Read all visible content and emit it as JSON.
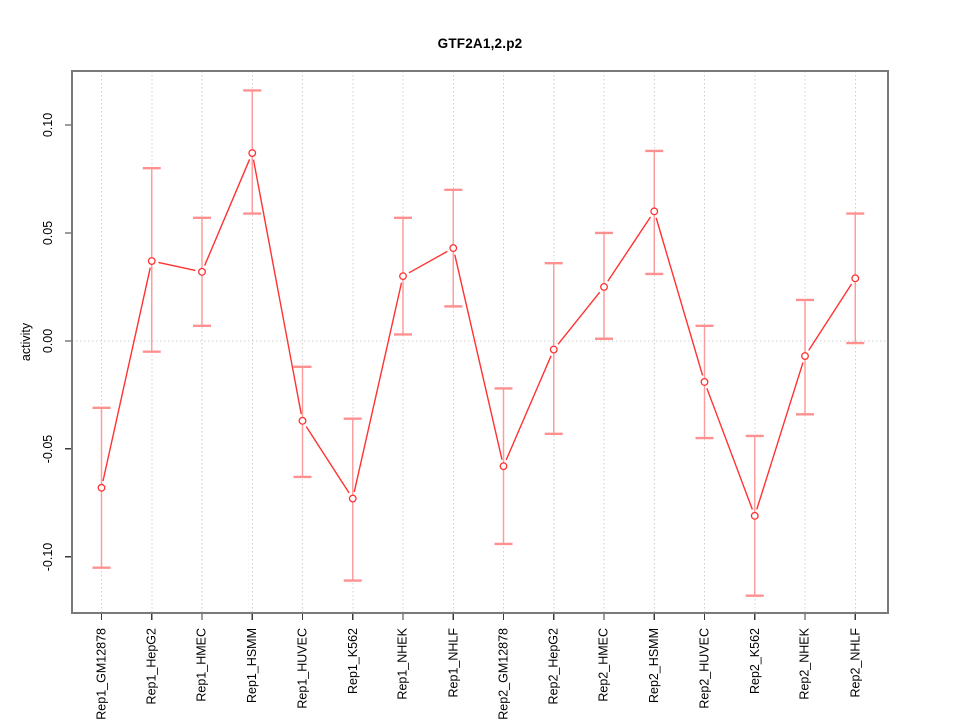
{
  "page": {
    "title": "GTF2A1,2.p2"
  },
  "chart_data": {
    "type": "line",
    "title": "GTF2A1,2.p2",
    "xlabel": "",
    "ylabel": "activity",
    "categories": [
      "Rep1_GM12878",
      "Rep1_HepG2",
      "Rep1_HMEC",
      "Rep1_HSMM",
      "Rep1_HUVEC",
      "Rep1_K562",
      "Rep1_NHEK",
      "Rep1_NHLF",
      "Rep2_GM12878",
      "Rep2_HepG2",
      "Rep2_HMEC",
      "Rep2_HSMM",
      "Rep2_HUVEC",
      "Rep2_K562",
      "Rep2_NHEK",
      "Rep2_NHLF"
    ],
    "series": [
      {
        "name": "activity",
        "marker": "open-circle",
        "values": [
          -0.068,
          0.037,
          0.032,
          0.087,
          -0.037,
          -0.073,
          0.03,
          0.043,
          -0.058,
          -0.004,
          0.025,
          0.06,
          -0.019,
          -0.081,
          -0.007,
          0.029
        ],
        "err_lo": [
          -0.105,
          -0.005,
          0.007,
          0.059,
          -0.063,
          -0.111,
          0.003,
          0.016,
          -0.094,
          -0.043,
          0.001,
          0.031,
          -0.045,
          -0.118,
          -0.034,
          -0.001
        ],
        "err_hi": [
          -0.031,
          0.08,
          0.057,
          0.116,
          -0.012,
          -0.036,
          0.057,
          0.07,
          -0.022,
          0.036,
          0.05,
          0.088,
          0.007,
          -0.044,
          0.019,
          0.059
        ]
      }
    ],
    "yticks": [
      -0.1,
      -0.05,
      0.0,
      0.05,
      0.1
    ],
    "ytick_labels": [
      "-0.10",
      "-0.05",
      "0.00",
      "0.05",
      "0.10"
    ],
    "ylim": [
      -0.126,
      0.125
    ],
    "grid": {
      "vertical_per_category": true,
      "horizontal_at_zero": true,
      "style": "dotted"
    },
    "legend": null,
    "colors": {
      "line": "#ff3232",
      "error_bar": "#ff9090",
      "marker_fill": "#ffffff",
      "frame": "#7a7a7a",
      "tick": "#3a3a3a",
      "grid": "#cfcfcf",
      "text": "#000000"
    }
  }
}
